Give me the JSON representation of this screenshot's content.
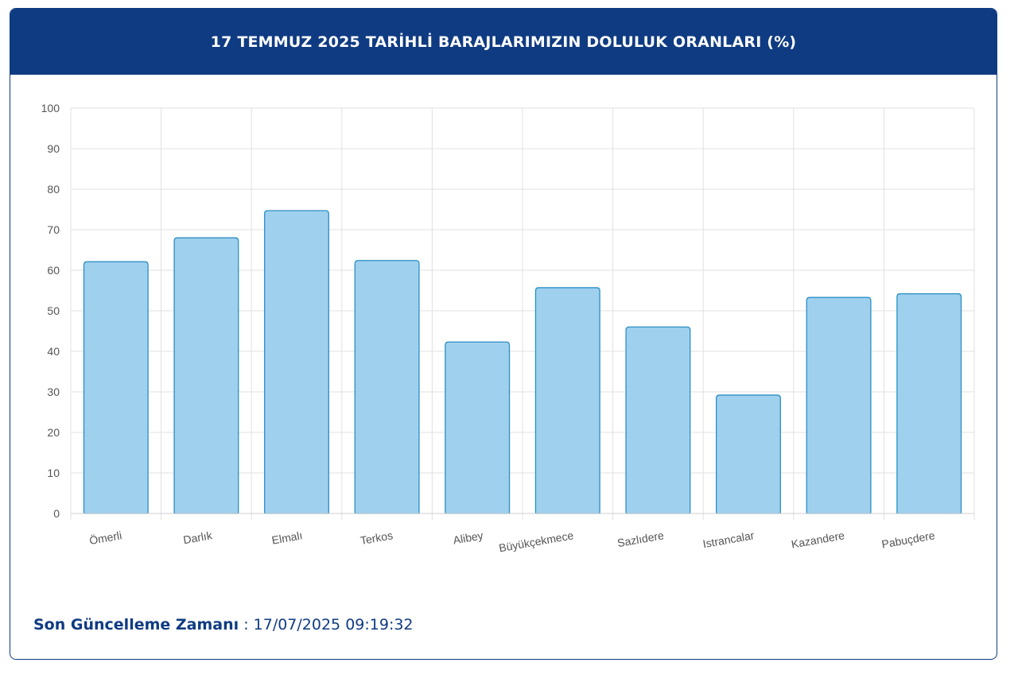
{
  "header": {
    "title": "17 TEMMUZ 2025 TARİHLİ BARAJLARIMIZIN DOLULUK ORANLARI (%)"
  },
  "footer": {
    "label": "Son Güncelleme Zamanı",
    "separator": " : ",
    "value": "17/07/2025 09:19:32"
  },
  "colors": {
    "header_bg": "#0f3b82",
    "bar_fill": "#9fd0ee",
    "bar_stroke": "#2b8fc4",
    "grid": "#e0e0e0"
  },
  "chart_data": {
    "type": "bar",
    "title": "17 TEMMUZ 2025 TARİHLİ BARAJLARIMIZIN DOLULUK ORANLARI (%)",
    "xlabel": "",
    "ylabel": "",
    "ylim": [
      0,
      100
    ],
    "yticks": [
      0,
      10,
      20,
      30,
      40,
      50,
      60,
      70,
      80,
      90,
      100
    ],
    "grid": true,
    "categories": [
      "Ömerli",
      "Darlık",
      "Elmalı",
      "Terkos",
      "Alibey",
      "Büyükçekmece",
      "Sazlıdere",
      "Istrancalar",
      "Kazandere",
      "Pabuçdere"
    ],
    "values": [
      62.1,
      68.0,
      74.7,
      62.4,
      42.3,
      55.7,
      46.0,
      29.2,
      53.3,
      54.2
    ]
  }
}
